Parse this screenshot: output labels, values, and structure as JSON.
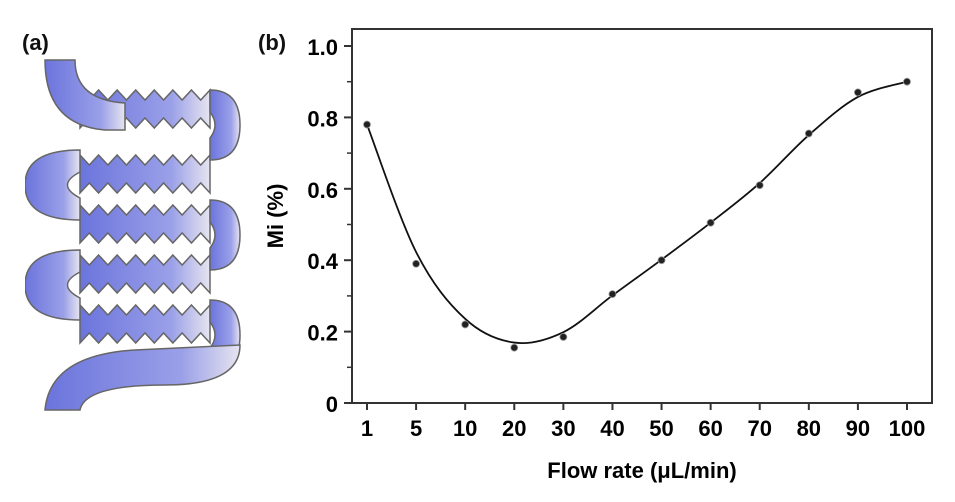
{
  "panel_a": {
    "label": "(a)"
  },
  "panel_b": {
    "label": "(b)"
  },
  "colors": {
    "channel_fill": "#7b84e0",
    "channel_edge": "#555555",
    "line": "#111111"
  },
  "chart_data": {
    "type": "line",
    "categories": [
      "1",
      "5",
      "10",
      "20",
      "30",
      "40",
      "50",
      "60",
      "70",
      "80",
      "90",
      "100"
    ],
    "series": [
      {
        "values": [
          0.78,
          0.39,
          0.22,
          0.155,
          0.185,
          0.305,
          0.4,
          0.505,
          0.61,
          0.755,
          0.87,
          0.9
        ]
      }
    ],
    "xlabel": "Flow rate (μL/min)",
    "ylabel": "Mi (%)",
    "ylim": [
      0,
      1.05
    ],
    "yticks": [
      "0",
      "0.2",
      "0.4",
      "0.6",
      "0.8",
      "1.0"
    ],
    "fit_curve": "smooth",
    "grid": false
  }
}
